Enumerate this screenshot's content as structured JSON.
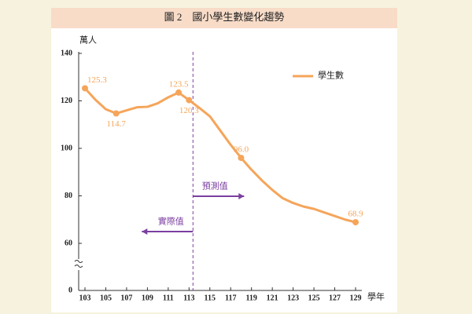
{
  "chart_data": {
    "type": "line",
    "title": "圖 2　國小學生數變化趨勢",
    "y_label": "萬人",
    "x_label": "學年",
    "x": [
      103,
      104,
      105,
      106,
      107,
      108,
      109,
      110,
      111,
      112,
      113,
      114,
      115,
      116,
      117,
      118,
      119,
      120,
      121,
      122,
      123,
      124,
      125,
      126,
      127,
      128,
      129
    ],
    "series": [
      {
        "name": "學生數",
        "color": "#f5a55a",
        "values": [
          125.3,
          120.5,
          116.5,
          114.7,
          116,
          117.3,
          117.5,
          119,
          121.5,
          123.5,
          120.3,
          117,
          113.5,
          107.5,
          101.5,
          96.0,
          91,
          86.5,
          82.5,
          79,
          77,
          75.5,
          74.5,
          73,
          71.5,
          70,
          68.9
        ],
        "value_labels": [
          "125.3",
          null,
          null,
          "114.7",
          null,
          null,
          null,
          null,
          null,
          "123.5",
          "120.3",
          null,
          null,
          null,
          null,
          "96.0",
          null,
          null,
          null,
          null,
          null,
          null,
          null,
          null,
          null,
          null,
          "68.9"
        ]
      }
    ],
    "xlim": [
      103,
      129
    ],
    "xticks": [
      103,
      105,
      107,
      109,
      111,
      113,
      115,
      117,
      119,
      121,
      123,
      125,
      127,
      129
    ],
    "ylim": [
      0,
      140
    ],
    "yticks": [
      0,
      60,
      80,
      100,
      120,
      140
    ],
    "axis_break": [
      0,
      60
    ],
    "annotations": [
      {
        "text": "預測值",
        "x": 113,
        "direction": "right"
      },
      {
        "text": "實際值",
        "x": 113,
        "direction": "left"
      }
    ],
    "legend": "top-right"
  }
}
